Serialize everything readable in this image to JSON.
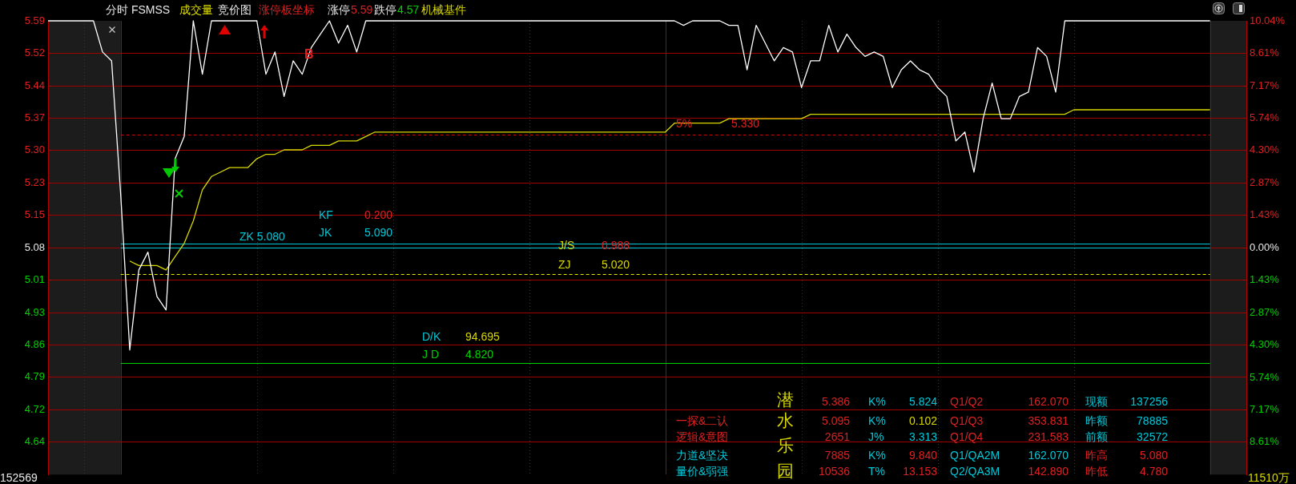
{
  "chart_data": {
    "type": "line",
    "categories": [
      null,
      null,
      null,
      null,
      null,
      null,
      null,
      null,
      null,
      null,
      null,
      null,
      null,
      null,
      null,
      null,
      null,
      null,
      null,
      null,
      null,
      null,
      null,
      null,
      null,
      null,
      null,
      null,
      null,
      null,
      null,
      null,
      null,
      null,
      null,
      null,
      null,
      null,
      null,
      null,
      null,
      null,
      null,
      null,
      null,
      null,
      null,
      null,
      null,
      null,
      null,
      null,
      null,
      null,
      null,
      null,
      null,
      null,
      null,
      null,
      null,
      null,
      null,
      null,
      null,
      null,
      null,
      null,
      null,
      null,
      null,
      null,
      null,
      null,
      null,
      null,
      null,
      null,
      null,
      null,
      null,
      null,
      null,
      null,
      null,
      null,
      null,
      null,
      null,
      null,
      null,
      null,
      null,
      null,
      null,
      null,
      null,
      null,
      null,
      null,
      null,
      null,
      null,
      null,
      null,
      null,
      null,
      null,
      null,
      null,
      null,
      null,
      null,
      null,
      null,
      null,
      null,
      null,
      null,
      null,
      null,
      null,
      null,
      null,
      null,
      null,
      null,
      null,
      null,
      null,
      null,
      null,
      null
    ],
    "ylim": [
      4.57,
      5.59
    ],
    "yticks": [
      {
        "value": 5.59,
        "label": "5.59"
      },
      {
        "value": 5.517,
        "label": "5.52"
      },
      {
        "value": 5.444,
        "label": "5.44"
      },
      {
        "value": 5.371,
        "label": "5.37"
      },
      {
        "value": 5.299,
        "label": "5.30"
      },
      {
        "value": 5.226,
        "label": "5.23"
      },
      {
        "value": 5.153,
        "label": "5.15"
      },
      {
        "value": 5.08,
        "label": "5.08"
      },
      {
        "value": 5.007,
        "label": "5.01"
      },
      {
        "value": 4.934,
        "label": "4.93"
      },
      {
        "value": 4.861,
        "label": "4.86"
      },
      {
        "value": 4.789,
        "label": "4.79"
      },
      {
        "value": 4.716,
        "label": "4.72"
      },
      {
        "value": 4.643,
        "label": "4.64"
      }
    ],
    "y2lim": [
      -10.04,
      10.04
    ],
    "y2ticks": [
      {
        "value": 10.04,
        "label": "10.04%"
      },
      {
        "value": 8.61,
        "label": "8.61%"
      },
      {
        "value": 7.17,
        "label": "7.17%"
      },
      {
        "value": 5.74,
        "label": "5.74%"
      },
      {
        "value": 4.3,
        "label": "4.30%"
      },
      {
        "value": 2.87,
        "label": "2.87%"
      },
      {
        "value": 1.43,
        "label": "1.43%"
      },
      {
        "value": 0,
        "label": "0.00%"
      },
      {
        "value": -1.43,
        "label": "1.43%"
      },
      {
        "value": -2.87,
        "label": "2.87%"
      },
      {
        "value": -4.3,
        "label": "4.30%"
      },
      {
        "value": -5.74,
        "label": "5.74%"
      },
      {
        "value": -7.17,
        "label": "7.17%"
      },
      {
        "value": -8.61,
        "label": "8.61%"
      }
    ],
    "tick_labels": "y",
    "grid": true,
    "series": [
      {
        "color": "#ffffff",
        "values": [
          5.59,
          5.59,
          5.59,
          5.59,
          5.59,
          5.59,
          5.52,
          5.5,
          5.2,
          4.85,
          5.03,
          5.07,
          4.97,
          4.94,
          5.28,
          5.33,
          5.59,
          5.47,
          5.59,
          5.59,
          5.59,
          5.59,
          5.59,
          5.59,
          5.47,
          5.52,
          5.42,
          5.5,
          5.47,
          5.53,
          5.56,
          5.59,
          5.54,
          5.58,
          5.52,
          5.59,
          5.59,
          5.59,
          5.59,
          5.59,
          5.59,
          5.59,
          5.59,
          5.59,
          5.59,
          5.59,
          5.59,
          5.59,
          5.59,
          5.59,
          5.59,
          5.59,
          5.59,
          5.59,
          5.59,
          5.59,
          5.59,
          5.59,
          5.59,
          5.59,
          5.59,
          5.59,
          5.59,
          5.59,
          5.59,
          5.59,
          5.59,
          5.59,
          5.59,
          5.59,
          5.58,
          5.59,
          5.59,
          5.59,
          5.59,
          5.58,
          5.58,
          5.48,
          5.58,
          5.54,
          5.5,
          5.53,
          5.52,
          5.44,
          5.5,
          5.5,
          5.58,
          5.52,
          5.56,
          5.53,
          5.51,
          5.52,
          5.51,
          5.44,
          5.48,
          5.5,
          5.48,
          5.47,
          5.44,
          5.42,
          5.32,
          5.34,
          5.25,
          5.37,
          5.45,
          5.37,
          5.37,
          5.42,
          5.43,
          5.53,
          5.51,
          5.43,
          5.59,
          5.59,
          5.59,
          5.59,
          5.59,
          5.59,
          5.59,
          5.59,
          5.59,
          5.59,
          5.59,
          5.59,
          5.59,
          5.59,
          5.59,
          5.59,
          5.59,
          null,
          null,
          null,
          null
        ]
      },
      {
        "color": "#d8d800",
        "values": [
          null,
          null,
          null,
          null,
          null,
          null,
          null,
          null,
          null,
          5.05,
          5.04,
          5.04,
          5.04,
          5.03,
          5.06,
          5.09,
          5.14,
          5.21,
          5.24,
          5.25,
          5.26,
          5.26,
          5.26,
          5.28,
          5.29,
          5.29,
          5.3,
          5.3,
          5.3,
          5.31,
          5.31,
          5.31,
          5.32,
          5.32,
          5.32,
          5.33,
          5.34,
          5.34,
          5.34,
          5.34,
          5.34,
          5.34,
          5.34,
          5.34,
          5.34,
          5.34,
          5.34,
          5.34,
          5.34,
          5.34,
          5.34,
          5.34,
          5.34,
          5.34,
          5.34,
          5.34,
          5.34,
          5.34,
          5.34,
          5.34,
          5.34,
          5.34,
          5.34,
          5.34,
          5.34,
          5.34,
          5.34,
          5.34,
          5.34,
          5.36,
          5.36,
          5.36,
          5.36,
          5.36,
          5.36,
          5.37,
          5.37,
          5.37,
          5.37,
          5.37,
          5.37,
          5.37,
          5.37,
          5.37,
          5.38,
          5.38,
          5.38,
          5.38,
          5.38,
          5.38,
          5.38,
          5.38,
          5.38,
          5.38,
          5.38,
          5.38,
          5.38,
          5.38,
          5.38,
          5.38,
          5.38,
          5.38,
          5.38,
          5.38,
          5.38,
          5.38,
          5.38,
          5.38,
          5.38,
          5.38,
          5.38,
          5.38,
          5.38,
          5.39,
          5.39,
          5.39,
          5.39,
          5.39,
          5.39,
          5.39,
          5.39,
          5.39,
          5.39,
          5.39,
          5.39,
          5.39,
          5.39,
          5.39,
          5.39,
          null,
          null,
          null,
          null
        ]
      }
    ],
    "ref_lines": [
      {
        "axis": "y",
        "value": 5.09,
        "color": "#00c8d8"
      },
      {
        "axis": "y",
        "value": 5.08,
        "color": "#00c8d8"
      },
      {
        "axis": "y",
        "value": 5.02,
        "color": "#e8e800",
        "line_style": "dashed"
      },
      {
        "axis": "y",
        "value": 4.82,
        "color": "#00d000"
      },
      {
        "axis": "y",
        "value": 5.335,
        "color": "#e00000",
        "line_style": "dashed"
      }
    ],
    "annotations": [
      "分时 FSMSS",
      "成交量",
      "竞价图",
      "涨停板坐标",
      "涨停",
      "5.59",
      "跌停",
      "4.57",
      "机械基件",
      "KF",
      "0.200",
      "JK",
      "5.090",
      "ZK 5.080",
      "J/S",
      "0.988",
      "ZJ",
      "5.020",
      "D/K",
      "94.695",
      "J D",
      "4.820",
      "5%",
      "5.330",
      "B",
      "一探&二认",
      "逻辑&意图",
      "力道&坚决",
      "量价&弱强",
      "潜",
      "水",
      "乐",
      "园",
      "5.386",
      "5.095",
      "2651",
      "7885",
      "10536",
      "K%",
      "K%",
      "J%",
      "K%",
      "T%",
      "5.824",
      "0.102",
      "3.313",
      "9.840",
      "13.153",
      "Q1/Q2",
      "Q1/Q3",
      "Q1/Q4",
      "Q1/QA2M",
      "Q2/QA3M",
      "162.070",
      "353.831",
      "231.583",
      "162.070",
      "142.890",
      "现额",
      "昨额",
      "前额",
      "昨高",
      "昨低",
      "137256",
      "78885",
      "32572",
      "5.080",
      "4.780",
      "152569",
      "11510万"
    ]
  }
}
